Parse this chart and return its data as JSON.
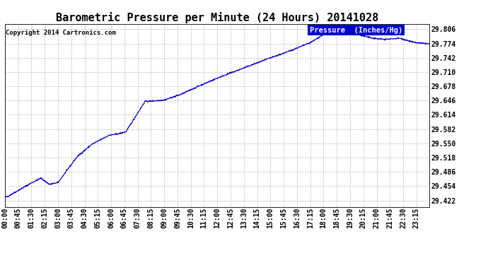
{
  "title": "Barometric Pressure per Minute (24 Hours) 20141028",
  "copyright": "Copyright 2014 Cartronics.com",
  "legend_label": "Pressure  (Inches/Hg)",
  "line_color": "#0000cc",
  "background_color": "#ffffff",
  "grid_color": "#aaaaaa",
  "yticks": [
    29.422,
    29.454,
    29.486,
    29.518,
    29.55,
    29.582,
    29.614,
    29.646,
    29.678,
    29.71,
    29.742,
    29.774,
    29.806
  ],
  "ylim": [
    29.408,
    29.818
  ],
  "xtick_labels": [
    "00:00",
    "00:45",
    "01:30",
    "02:15",
    "03:00",
    "03:45",
    "04:30",
    "05:15",
    "06:00",
    "06:45",
    "07:30",
    "08:15",
    "09:00",
    "09:45",
    "10:30",
    "11:15",
    "12:00",
    "12:45",
    "13:30",
    "14:15",
    "15:00",
    "15:45",
    "16:30",
    "17:15",
    "18:00",
    "18:45",
    "19:30",
    "20:15",
    "21:00",
    "21:45",
    "22:30",
    "23:15"
  ],
  "title_fontsize": 11,
  "axis_fontsize": 7,
  "copyright_fontsize": 6.5,
  "legend_fontsize": 7.5
}
